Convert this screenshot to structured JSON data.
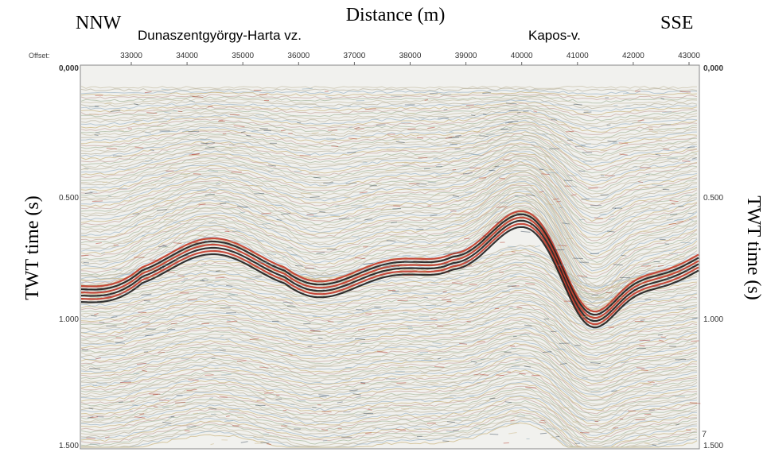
{
  "title": "Distance (m)",
  "left_direction": "NNW",
  "right_direction": "SSE",
  "annotations": [
    "Dunaszentgyörgy-Harta vz.",
    "Kapos-v."
  ],
  "x_axis": {
    "label": "Offset:",
    "ticks": [
      "33000",
      "34000",
      "35000",
      "36000",
      "37000",
      "38000",
      "39000",
      "40000",
      "41000",
      "42000",
      "43000"
    ]
  },
  "y_axis": {
    "label": "TWT time (s)",
    "ticks": [
      "0,000",
      "0.500",
      "1.000",
      "1.500"
    ]
  },
  "figure_number": "7"
}
